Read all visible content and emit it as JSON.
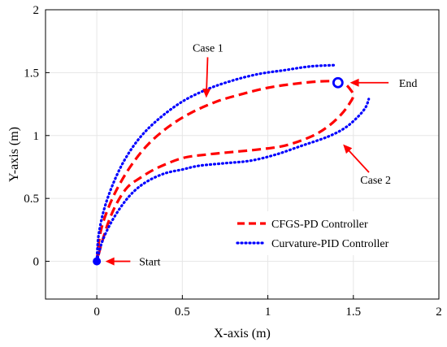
{
  "chart_data": {
    "type": "line",
    "title": "",
    "xlabel": "X-axis (m)",
    "ylabel": "Y-axis (m)",
    "xlim": [
      -0.3,
      2
    ],
    "ylim": [
      -0.3,
      2
    ],
    "xticks": [
      0,
      0.5,
      1,
      1.5,
      2
    ],
    "yticks": [
      0,
      0.5,
      1,
      1.5,
      2
    ],
    "xtick_labels": [
      "0",
      "0.5",
      "1",
      "1.5",
      "2"
    ],
    "ytick_labels": [
      "0",
      "0.5",
      "1",
      "1.5",
      "2"
    ],
    "grid": true,
    "legend_position": "center-right",
    "series": [
      {
        "name": "CFGS-PD Controller",
        "color": "#ff0000",
        "style": "dashed",
        "segments": [
          [
            [
              0,
              0
            ],
            [
              0.02,
              0.22
            ],
            [
              0.06,
              0.4
            ],
            [
              0.12,
              0.58
            ],
            [
              0.2,
              0.76
            ],
            [
              0.3,
              0.93
            ],
            [
              0.42,
              1.07
            ],
            [
              0.55,
              1.18
            ],
            [
              0.7,
              1.27
            ],
            [
              0.85,
              1.33
            ],
            [
              1,
              1.38
            ],
            [
              1.15,
              1.41
            ],
            [
              1.3,
              1.43
            ],
            [
              1.4,
              1.43
            ],
            [
              1.45,
              1.41
            ],
            [
              1.48,
              1.37
            ],
            [
              1.5,
              1.32
            ],
            [
              1.48,
              1.26
            ],
            [
              1.43,
              1.17
            ],
            [
              1.35,
              1.07
            ],
            [
              1.25,
              0.99
            ],
            [
              1.1,
              0.92
            ],
            [
              0.95,
              0.89
            ],
            [
              0.8,
              0.87
            ],
            [
              0.65,
              0.85
            ],
            [
              0.5,
              0.82
            ],
            [
              0.35,
              0.74
            ],
            [
              0.25,
              0.66
            ],
            [
              0.18,
              0.59
            ],
            [
              0.12,
              0.47
            ],
            [
              0.07,
              0.32
            ],
            [
              0.03,
              0.15
            ],
            [
              0,
              0
            ]
          ]
        ]
      },
      {
        "name": "Curvature-PID Controller",
        "color": "#0000ff",
        "style": "dotted",
        "segments": [
          [
            [
              0,
              0
            ],
            [
              0.01,
              0.2
            ],
            [
              0.04,
              0.4
            ],
            [
              0.09,
              0.6
            ],
            [
              0.16,
              0.8
            ],
            [
              0.25,
              0.98
            ],
            [
              0.36,
              1.13
            ],
            [
              0.5,
              1.27
            ],
            [
              0.65,
              1.37
            ],
            [
              0.8,
              1.44
            ],
            [
              0.95,
              1.49
            ],
            [
              1.1,
              1.52
            ],
            [
              1.25,
              1.55
            ],
            [
              1.4,
              1.56
            ]
          ],
          [
            [
              0,
              0
            ],
            [
              0.03,
              0.15
            ],
            [
              0.08,
              0.3
            ],
            [
              0.15,
              0.45
            ],
            [
              0.22,
              0.56
            ],
            [
              0.3,
              0.64
            ],
            [
              0.4,
              0.7
            ],
            [
              0.5,
              0.73
            ],
            [
              0.6,
              0.76
            ],
            [
              0.75,
              0.78
            ],
            [
              0.9,
              0.8
            ],
            [
              1.05,
              0.85
            ],
            [
              1.2,
              0.92
            ],
            [
              1.35,
              0.99
            ],
            [
              1.45,
              1.06
            ],
            [
              1.52,
              1.14
            ],
            [
              1.57,
              1.22
            ],
            [
              1.59,
              1.29
            ]
          ]
        ]
      }
    ],
    "markers": [
      {
        "name": "start-marker",
        "x": 0,
        "y": 0,
        "shape": "filled-circle",
        "color": "#0000ff"
      },
      {
        "name": "end-marker",
        "x": 1.41,
        "y": 1.42,
        "shape": "open-circle",
        "color": "#0000ff"
      }
    ],
    "annotations": [
      {
        "text": "Case 1",
        "text_x": 0.65,
        "text_y": 1.7,
        "arrow_to": [
          0.64,
          1.3
        ]
      },
      {
        "text": "End",
        "text_x": 1.82,
        "text_y": 1.42,
        "arrow_to": [
          1.48,
          1.42
        ]
      },
      {
        "text": "Case 2",
        "text_x": 1.63,
        "text_y": 0.65,
        "arrow_to": [
          1.44,
          0.93
        ]
      },
      {
        "text": "Start",
        "text_x": 0.31,
        "text_y": 0,
        "arrow_to": [
          0.05,
          0
        ]
      }
    ],
    "legend": [
      {
        "label": "CFGS-PD Controller",
        "color": "#ff0000",
        "style": "dashed"
      },
      {
        "label": "Curvature-PID Controller",
        "color": "#0000ff",
        "style": "dotted"
      }
    ]
  }
}
